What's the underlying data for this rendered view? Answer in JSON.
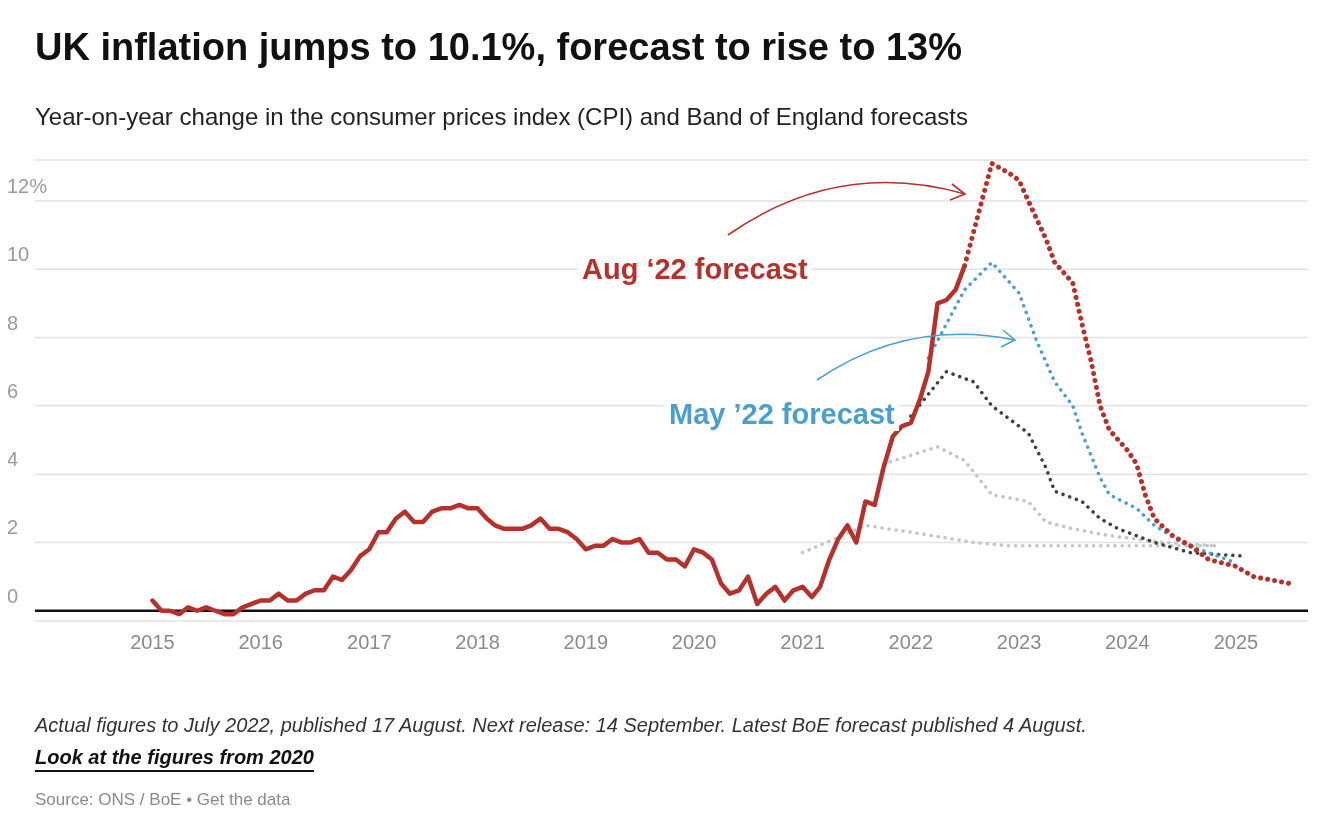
{
  "chart_data": {
    "type": "line",
    "title": "UK inflation jumps to 10.1%, forecast to rise to 13%",
    "subtitle": "Year-on-year change in the consumer prices index (CPI) and Band of England forecasts",
    "xlim": [
      "2013-12",
      "2025-09"
    ],
    "xticks": [
      "2015",
      "2016",
      "2017",
      "2018",
      "2019",
      "2020",
      "2021",
      "2022",
      "2023",
      "2024",
      "2025"
    ],
    "ylim": [
      -0.3,
      13.2
    ],
    "ref_lines": [
      {
        "axis": "y",
        "value": 0,
        "color": "#111111"
      }
    ],
    "yticks": [
      0,
      2,
      4,
      6,
      8,
      10,
      {
        "value": 12,
        "label": "12%"
      }
    ],
    "grid": "y",
    "marker": "none",
    "series": [
      {
        "color": "#c4c4c4",
        "line_style": "dotted",
        "x": [
          "2021-01",
          "2021-08",
          "2022-01",
          "2022-08",
          "2022-12",
          "2023-12",
          "2024-11"
        ],
        "values": [
          1.7,
          2.5,
          2.3,
          2.0,
          1.9,
          1.9,
          1.9
        ]
      },
      {
        "color": "#c4c4c4",
        "line_style": "dotted",
        "x": [
          "2021-10",
          "2022-04",
          "2022-07",
          "2022-10",
          "2023-02",
          "2023-04",
          "2023-07",
          "2023-11",
          "2024-05",
          "2024-11"
        ],
        "values": [
          4.3,
          4.8,
          4.4,
          3.4,
          3.2,
          2.6,
          2.4,
          2.2,
          2.0,
          1.9
        ]
      },
      {
        "color": "#404040",
        "line_style": "dotted",
        "x": [
          "2022-01",
          "2022-05",
          "2022-08",
          "2022-10",
          "2023-02",
          "2023-04",
          "2023-05",
          "2023-08",
          "2023-10",
          "2023-12",
          "2024-04",
          "2024-08",
          "2025-02"
        ],
        "values": [
          5.7,
          7.0,
          6.7,
          6.0,
          5.2,
          4.2,
          3.5,
          3.2,
          2.7,
          2.4,
          2.0,
          1.7,
          1.6
        ]
      },
      {
        "name": "May ’22 forecast",
        "color": "#4aa0cc",
        "line_style": "dotted",
        "x": [
          "2022-03",
          "2022-07",
          "2022-10",
          "2023-01",
          "2023-03",
          "2023-05",
          "2023-07",
          "2023-08",
          "2023-10",
          "2023-11",
          "2024-02",
          "2024-04",
          "2024-07",
          "2024-10",
          "2025-01"
        ],
        "values": [
          7.4,
          9.4,
          10.2,
          9.3,
          7.9,
          6.7,
          6.0,
          5.2,
          3.9,
          3.4,
          3.0,
          2.5,
          2.0,
          1.7,
          1.4
        ]
      },
      {
        "name": "Aug ‘22 forecast",
        "color": "#b7312c",
        "line_style": "dotted",
        "x": [
          "2022-07",
          "2022-10",
          "2022-12",
          "2023-01",
          "2023-02",
          "2023-04",
          "2023-05",
          "2023-07",
          "2023-08",
          "2023-09",
          "2023-10",
          "2023-11",
          "2024-01",
          "2024-02",
          "2024-03",
          "2024-04",
          "2024-06",
          "2024-08",
          "2024-10",
          "2025-01",
          "2025-03",
          "2025-07"
        ],
        "values": [
          10.1,
          13.1,
          12.8,
          12.6,
          12.0,
          10.9,
          10.2,
          9.6,
          8.4,
          7.3,
          6.0,
          5.3,
          4.7,
          4.3,
          3.4,
          2.7,
          2.2,
          1.9,
          1.5,
          1.3,
          1.0,
          0.8
        ]
      },
      {
        "color": "#b7312c",
        "line_style": "solid",
        "x": [
          "2015-01",
          "2015-02",
          "2015-03",
          "2015-04",
          "2015-05",
          "2015-06",
          "2015-07",
          "2015-08",
          "2015-09",
          "2015-10",
          "2015-11",
          "2015-12",
          "2016-01",
          "2016-02",
          "2016-03",
          "2016-04",
          "2016-05",
          "2016-06",
          "2016-07",
          "2016-08",
          "2016-09",
          "2016-10",
          "2016-11",
          "2016-12",
          "2017-01",
          "2017-02",
          "2017-03",
          "2017-04",
          "2017-05",
          "2017-06",
          "2017-07",
          "2017-08",
          "2017-09",
          "2017-10",
          "2017-11",
          "2017-12",
          "2018-01",
          "2018-02",
          "2018-03",
          "2018-04",
          "2018-05",
          "2018-06",
          "2018-07",
          "2018-08",
          "2018-09",
          "2018-10",
          "2018-11",
          "2018-12",
          "2019-01",
          "2019-02",
          "2019-03",
          "2019-04",
          "2019-05",
          "2019-06",
          "2019-07",
          "2019-08",
          "2019-09",
          "2019-10",
          "2019-11",
          "2019-12",
          "2020-01",
          "2020-02",
          "2020-03",
          "2020-04",
          "2020-05",
          "2020-06",
          "2020-07",
          "2020-08",
          "2020-09",
          "2020-10",
          "2020-11",
          "2020-12",
          "2021-01",
          "2021-02",
          "2021-03",
          "2021-04",
          "2021-05",
          "2021-06",
          "2021-07",
          "2021-08",
          "2021-09",
          "2021-10",
          "2021-11",
          "2021-12",
          "2022-01",
          "2022-02",
          "2022-03",
          "2022-04",
          "2022-05",
          "2022-06",
          "2022-07"
        ],
        "values": [
          0.3,
          0.0,
          0.0,
          -0.1,
          0.1,
          0.0,
          0.1,
          0.0,
          -0.1,
          -0.1,
          0.1,
          0.2,
          0.3,
          0.3,
          0.5,
          0.3,
          0.3,
          0.5,
          0.6,
          0.6,
          1.0,
          0.9,
          1.2,
          1.6,
          1.8,
          2.3,
          2.3,
          2.7,
          2.9,
          2.6,
          2.6,
          2.9,
          3.0,
          3.0,
          3.1,
          3.0,
          3.0,
          2.7,
          2.5,
          2.4,
          2.4,
          2.4,
          2.5,
          2.7,
          2.4,
          2.4,
          2.3,
          2.1,
          1.8,
          1.9,
          1.9,
          2.1,
          2.0,
          2.0,
          2.1,
          1.7,
          1.7,
          1.5,
          1.5,
          1.3,
          1.8,
          1.7,
          1.5,
          0.8,
          0.5,
          0.6,
          1.0,
          0.2,
          0.5,
          0.7,
          0.3,
          0.6,
          0.7,
          0.4,
          0.7,
          1.5,
          2.1,
          2.5,
          2.0,
          3.2,
          3.1,
          4.2,
          5.1,
          5.4,
          5.5,
          6.2,
          7.0,
          9.0,
          9.1,
          9.4,
          10.1
        ]
      }
    ],
    "annotations": [
      "Actual figures to July 2022, published 17 August. Next release: 14 September. Latest BoE forecast published 4 August.",
      "Look at the figures from 2020",
      "Source: ONS / BoE • Get the data"
    ]
  }
}
